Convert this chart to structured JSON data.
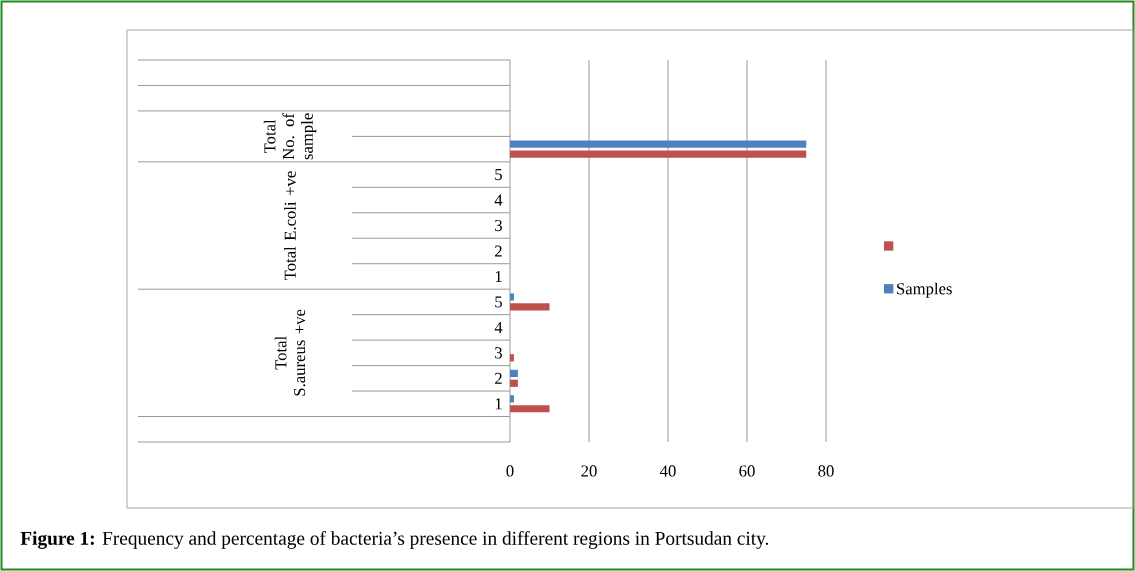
{
  "chart_data": {
    "type": "bar",
    "orientation": "horizontal",
    "categories": [
      null,
      null,
      null,
      null,
      "5",
      "4",
      "3",
      "2",
      "1",
      "5",
      "4",
      "3",
      "2",
      "1",
      null
    ],
    "series": [
      {
        "color": "#c0504d",
        "values": [
          null,
          null,
          null,
          75,
          0,
          0,
          0,
          0,
          0,
          10,
          0,
          1,
          2,
          10,
          null
        ]
      },
      {
        "name": "Samples",
        "color": "#4f81bd",
        "values": [
          null,
          null,
          null,
          75,
          0,
          0,
          0,
          0,
          0,
          1,
          0,
          0,
          2,
          1,
          null
        ]
      }
    ],
    "xlim": [
      0,
      80
    ],
    "xticks": [
      0,
      20,
      40,
      60,
      80
    ],
    "grid": "x",
    "legend": "right",
    "annotations": [
      "**Figure 1:** Frequency and percentage of bacteria’s presence in different regions in Portsudan city.",
      "Total No. of sample",
      "Total E.coli +ve",
      "Total S.aureus +ve"
    ]
  }
}
